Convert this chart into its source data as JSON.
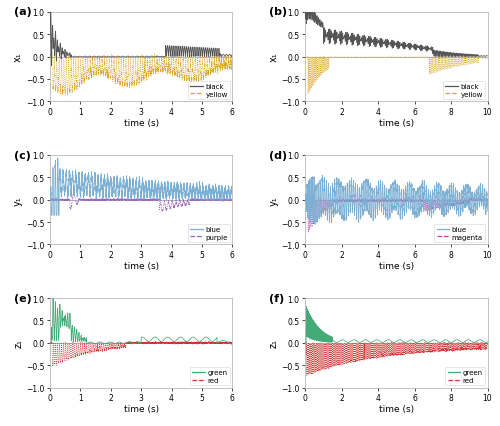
{
  "panel_labels": [
    "(a)",
    "(b)",
    "(c)",
    "(d)",
    "(e)",
    "(f)"
  ],
  "ylim": [
    -1.0,
    1.0
  ],
  "yticks": [
    -1.0,
    -0.5,
    0.0,
    0.5,
    1.0
  ],
  "left_xlim": [
    0,
    6
  ],
  "right_xlim": [
    0,
    10
  ],
  "left_xticks": [
    0,
    1,
    2,
    3,
    4,
    5,
    6
  ],
  "right_xticks": [
    0,
    2,
    4,
    6,
    8,
    10
  ],
  "xlabel": "time (s)",
  "ylabels_left": [
    "x₁",
    "y₁",
    "z₁"
  ],
  "ylabels_right": [
    "x₁",
    "y₁",
    "z₁"
  ],
  "colors": {
    "black": "#555555",
    "yellow": "#DAA520",
    "blue": "#7bafd4",
    "purple": "#9966bb",
    "magenta": "#bb4499",
    "green": "#44aa77",
    "red": "#cc3333"
  },
  "legend_pairs": [
    [
      "black",
      "yellow"
    ],
    [
      "black",
      "yellow"
    ],
    [
      "blue",
      "purple"
    ],
    [
      "blue",
      "magenta"
    ],
    [
      "green",
      "red"
    ],
    [
      "green",
      "red"
    ]
  ]
}
